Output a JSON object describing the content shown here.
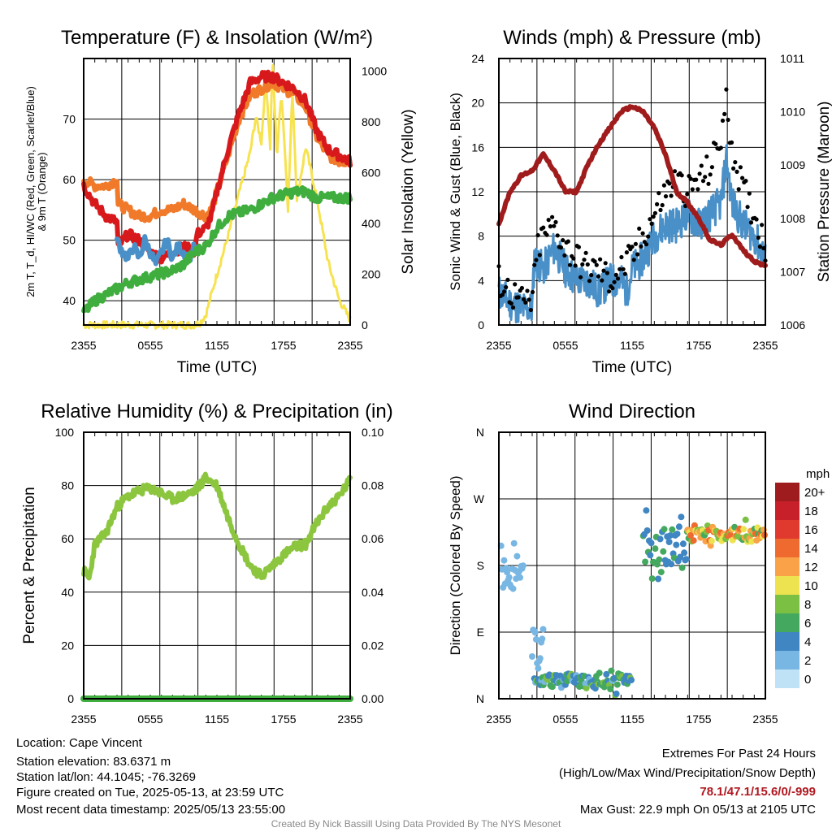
{
  "colors": {
    "temp": "#d7191c",
    "dew": "#3fae3f",
    "hiwc": "#4a90c8",
    "temp9m": "#f07a2a",
    "solar": "#f7e24f",
    "wind": "#4a90c8",
    "gust": "#000000",
    "pressure": "#a01c1c",
    "rh": "#8cc63f",
    "precip": "#3fae3f",
    "extremes": "#b0171f"
  },
  "footer": {
    "location": "Location: Cape Vincent",
    "elevation": "Station elevation: 83.6371 m",
    "latlon": "Station lat/lon: 44.1045; -76.3269",
    "created": "Figure created on Tue, 2025-05-13, at 23:59 UTC",
    "recent": "Most recent data timestamp: 2025/05/13 23:55:00",
    "extremes_title": "Extremes For Past 24 Hours",
    "extremes_subtitle": "(High/Low/Max Wind/Precipitation/Snow Depth)",
    "extremes_values": "78.1/47.1/15.6/0/-999",
    "max_gust": "Max Gust: 22.9 mph On 05/13 at 2105 UTC",
    "credit": "Created By Nick Bassill Using Data Provided By The NYS Mesonet"
  },
  "chart_data": [
    {
      "type": "line",
      "title": "Temperature (F) & Insolation (W/m²)",
      "xlabel": "Time (UTC)",
      "ylabel": "2m T, T_d, HI/WC (Red, Green, Scarlet/Blue) & 9m T (Orange)",
      "ylabel_right": "Solar Insolation (Yellow)",
      "x_ticks": [
        "2355",
        "0555",
        "1155",
        "1755",
        "2355"
      ],
      "x_range_hours": [
        0,
        24
      ],
      "ylim": [
        36,
        80
      ],
      "y_ticks": [
        40,
        50,
        60,
        70
      ],
      "ylim_right": [
        0,
        1050
      ],
      "y_ticks_right": [
        0,
        200,
        400,
        600,
        800,
        1000
      ],
      "series": [
        {
          "name": "Red",
          "hours": [
            0,
            1,
            2,
            3,
            3.1,
            4,
            5,
            6,
            7,
            8,
            9,
            10,
            10.2,
            11,
            11.5,
            12,
            13,
            14,
            15,
            16,
            17,
            18,
            19,
            20,
            21,
            22,
            23,
            24
          ],
          "values": [
            59,
            56,
            54,
            53,
            49,
            51,
            50,
            48,
            47,
            48,
            49,
            48,
            51,
            52,
            54,
            58,
            65,
            71,
            76,
            77,
            77,
            76,
            75,
            73,
            68,
            65,
            64,
            63
          ]
        },
        {
          "name": "Green",
          "hours": [
            0,
            1,
            2,
            3,
            4,
            5,
            6,
            7,
            8,
            9,
            10,
            11,
            12,
            13,
            14,
            15,
            16,
            17,
            18,
            19,
            20,
            21,
            22,
            23,
            24
          ],
          "values": [
            38,
            40,
            41,
            42,
            43,
            43.5,
            44,
            44.5,
            45,
            46,
            48,
            49,
            52,
            54,
            54.5,
            55,
            56,
            57,
            57.5,
            58,
            58,
            57,
            57,
            57,
            57
          ]
        },
        {
          "name": "Blue",
          "hours": [
            3,
            3.5,
            4,
            4.5,
            5,
            5.5,
            6,
            6.5,
            7,
            7.5,
            8,
            8.5,
            9,
            9.5,
            10
          ],
          "values": [
            50,
            48,
            47,
            49,
            47,
            50,
            48,
            46,
            48,
            50,
            47,
            49,
            48,
            47,
            49
          ]
        },
        {
          "name": "Orange",
          "hours": [
            0,
            1,
            2,
            3,
            3.1,
            4,
            5,
            6,
            7,
            8,
            9,
            10,
            11,
            11.5,
            12,
            13,
            14,
            15,
            16,
            17,
            18,
            19,
            20,
            21,
            22,
            23,
            24
          ],
          "values": [
            60,
            59,
            59,
            60,
            56,
            55,
            54,
            54,
            55,
            55,
            56,
            55,
            54,
            55,
            58,
            64,
            70,
            74,
            75,
            76,
            75,
            74,
            72,
            67,
            64,
            63,
            63
          ]
        },
        {
          "name": "Yellow",
          "hours": [
            0,
            6,
            10,
            10.5,
            11,
            12,
            13,
            14,
            15,
            15.5,
            16,
            16.4,
            16.8,
            17,
            17.4,
            17.8,
            18,
            18.4,
            18.8,
            19.2,
            20,
            21,
            22,
            23,
            24
          ],
          "values": [
            0,
            0,
            0,
            10,
            40,
            200,
            350,
            520,
            680,
            820,
            720,
            980,
            700,
            1050,
            660,
            920,
            780,
            460,
            920,
            500,
            700,
            500,
            250,
            100,
            20
          ]
        }
      ]
    },
    {
      "type": "line",
      "title": "Winds (mph) & Pressure (mb)",
      "xlabel": "Time (UTC)",
      "ylabel": "Sonic Wind & Gust (Blue, Black)",
      "ylabel_right": "Station Pressure (Maroon)",
      "x_ticks": [
        "2355",
        "0555",
        "1155",
        "1755",
        "2355"
      ],
      "x_range_hours": [
        0,
        24
      ],
      "ylim": [
        0,
        24
      ],
      "y_ticks": [
        0,
        4,
        8,
        12,
        16,
        20,
        24
      ],
      "ylim_right": [
        1006,
        1011
      ],
      "y_ticks_right": [
        1006,
        1007,
        1008,
        1009,
        1010,
        1011
      ],
      "series": [
        {
          "name": "Blue",
          "hours": [
            0,
            1,
            2,
            3,
            3.2,
            4,
            5,
            6,
            7,
            8,
            9,
            10,
            11,
            11.5,
            12,
            13,
            14,
            15,
            16,
            17,
            18,
            19,
            20,
            20.5,
            21,
            22,
            23,
            24
          ],
          "values": [
            3,
            2,
            1.5,
            1.5,
            6,
            5,
            7,
            5,
            4,
            4,
            3,
            4,
            4,
            3,
            5,
            6,
            8,
            9,
            9,
            10,
            9,
            10,
            11,
            15,
            11,
            9,
            8,
            6
          ]
        },
        {
          "name": "Black",
          "hours": [
            0,
            1,
            2,
            3,
            3.5,
            4,
            5,
            6,
            7,
            8,
            9,
            10,
            11,
            12,
            13,
            14,
            15,
            16,
            17,
            18,
            19,
            20,
            20.5,
            21,
            22,
            23,
            24
          ],
          "values": [
            4,
            3,
            2,
            2,
            7,
            8,
            9,
            7,
            6,
            5,
            5,
            4,
            5,
            6,
            8,
            10,
            12,
            13,
            12,
            13,
            14,
            17,
            20,
            16,
            12,
            10,
            7
          ]
        },
        {
          "name": "Maroon",
          "hours": [
            0,
            1,
            2,
            3,
            4,
            5,
            6,
            7,
            8,
            9,
            10,
            11,
            12,
            13,
            14,
            15,
            16,
            17,
            18,
            19,
            20,
            21,
            22,
            23,
            24
          ],
          "values": [
            1007.9,
            1008.5,
            1008.8,
            1008.9,
            1009.2,
            1008.9,
            1008.5,
            1008.5,
            1009.0,
            1009.4,
            1009.7,
            1010.0,
            1010.1,
            1010.0,
            1009.7,
            1009.2,
            1008.5,
            1008.3,
            1008.0,
            1007.6,
            1007.5,
            1007.7,
            1007.4,
            1007.2,
            1007.1
          ]
        }
      ]
    },
    {
      "type": "line",
      "title": "Relative Humidity (%) & Precipitation (in)",
      "xlabel": "",
      "ylabel": "Percent & Precipitation",
      "x_ticks": [
        "2355",
        "0555",
        "1155",
        "1755",
        "2355"
      ],
      "x_range_hours": [
        0,
        24
      ],
      "ylim": [
        0,
        100
      ],
      "y_ticks": [
        0,
        20,
        40,
        60,
        80,
        100
      ],
      "ylim_right": [
        0,
        0.1
      ],
      "y_ticks_right": [
        "0.00",
        "0.02",
        "0.04",
        "0.06",
        "0.08",
        "0.10"
      ],
      "series": [
        {
          "name": "Relative Humidity",
          "hours": [
            0,
            0.5,
            1,
            2,
            3,
            4,
            5,
            6,
            7,
            8,
            9,
            10,
            11,
            12,
            13,
            14,
            15,
            16,
            17,
            18,
            19,
            20,
            21,
            22,
            23,
            24
          ],
          "values": [
            48,
            45,
            58,
            62,
            72,
            76,
            78,
            79,
            77,
            75,
            76,
            78,
            83,
            80,
            68,
            58,
            50,
            46,
            50,
            54,
            57,
            58,
            66,
            72,
            76,
            82
          ]
        },
        {
          "name": "Precipitation",
          "hours": [
            0,
            24
          ],
          "values": [
            0,
            0
          ]
        }
      ]
    },
    {
      "type": "scatter",
      "title": "Wind Direction",
      "ylabel": "Direction (Colored By Speed)",
      "x_ticks": [
        "2355",
        "0555",
        "1155",
        "1755",
        "2355"
      ],
      "x_range_hours": [
        0,
        24
      ],
      "y_ticks": [
        "N",
        "E",
        "S",
        "W",
        "N"
      ],
      "ylim_degrees": [
        0,
        360
      ],
      "colorbar_title": "mph",
      "colorbar_labels": [
        "20+",
        "18",
        "16",
        "14",
        "12",
        "10",
        "8",
        "6",
        "4",
        "2",
        "0"
      ],
      "colorbar_colors": [
        "#9e1b1e",
        "#c8202a",
        "#e03a2e",
        "#ef6a2e",
        "#f9a247",
        "#ede24f",
        "#7bc043",
        "#44a85f",
        "#3f86c3",
        "#78b7e3",
        "#bfe2f6"
      ],
      "segments": [
        {
          "hours": [
            0.2,
            2.2
          ],
          "dir_mean": 172,
          "dir_spread": 25,
          "speed": [
            1,
            3
          ]
        },
        {
          "hours": [
            3.0,
            4.0
          ],
          "dir_mean": 70,
          "dir_spread": 30,
          "speed": [
            1,
            3
          ]
        },
        {
          "hours": [
            3.2,
            12.0
          ],
          "dir_mean": 24,
          "dir_spread": 10,
          "speed": [
            2,
            8
          ]
        },
        {
          "hours": [
            13.0,
            17.0
          ],
          "dir_mean": 205,
          "dir_spread": 25,
          "speed": [
            3,
            7
          ]
        },
        {
          "hours": [
            17.0,
            24.0
          ],
          "dir_mean": 222,
          "dir_spread": 10,
          "speed": [
            6,
            15
          ]
        }
      ]
    }
  ]
}
